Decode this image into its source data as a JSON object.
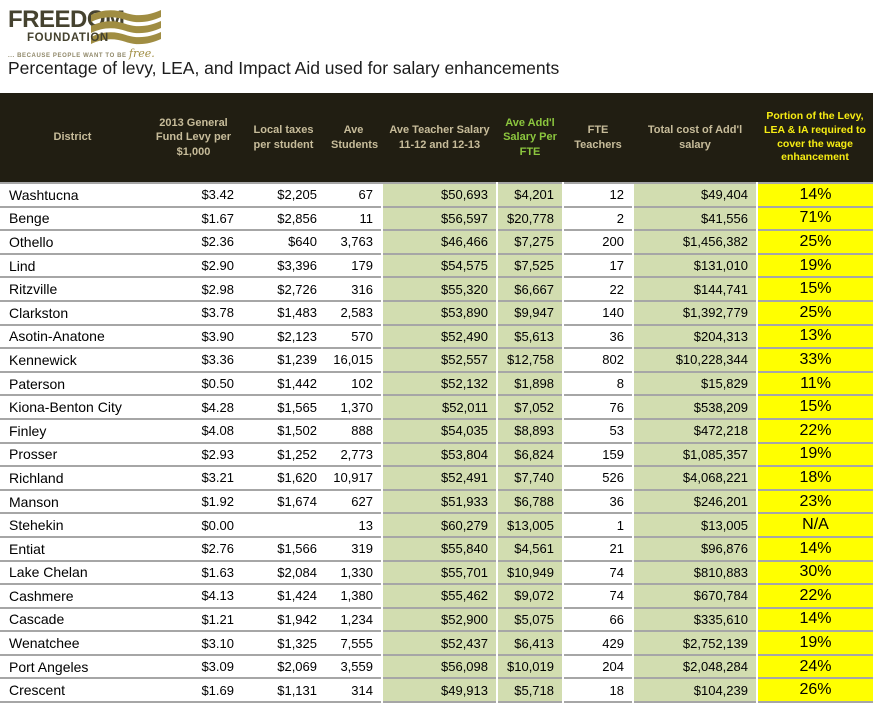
{
  "logo": {
    "name": "FREEDOM",
    "subname": "FOUNDATION",
    "tagline": "... BECAUSE PEOPLE WANT TO BE",
    "tagline_script": "free."
  },
  "title": "Percentage of levy, LEA, and Impact Aid used for salary enhancements",
  "colors": {
    "header_bg": "#211e12",
    "header_text_tan": "#c7bc9a",
    "header_text_green": "#8cc63e",
    "header_text_yellow": "#f7ed13",
    "green_column_bg": "#d2ddb0",
    "yellow_column_bg": "#ffff00",
    "row_border": "#a6a6a6",
    "logo_dark": "#45422f",
    "logo_gold": "#a08d42"
  },
  "table": {
    "columns": [
      {
        "key": "district",
        "label": "District"
      },
      {
        "key": "levy",
        "label": "2013 General Fund Levy per $1,000"
      },
      {
        "key": "local_taxes",
        "label": "Local taxes per student"
      },
      {
        "key": "ave_students",
        "label": "Ave Students"
      },
      {
        "key": "ave_salary",
        "label": "Ave Teacher Salary 11-12 and 12-13"
      },
      {
        "key": "addl_salary",
        "label": "Ave Add'l Salary Per FTE"
      },
      {
        "key": "fte",
        "label": "FTE Teachers"
      },
      {
        "key": "total_cost",
        "label": "Total cost of Add'l salary"
      },
      {
        "key": "portion",
        "label": "Portion of the Levy, LEA & IA required to cover the wage enhancement"
      }
    ],
    "rows": [
      [
        "Washtucna",
        "$3.42",
        "$2,205",
        "67",
        "$50,693",
        "$4,201",
        "12",
        "$49,404",
        "14%"
      ],
      [
        "Benge",
        "$1.67",
        "$2,856",
        "11",
        "$56,597",
        "$20,778",
        "2",
        "$41,556",
        "71%"
      ],
      [
        "Othello",
        "$2.36",
        "$640",
        "3,763",
        "$46,466",
        "$7,275",
        "200",
        "$1,456,382",
        "25%"
      ],
      [
        "Lind",
        "$2.90",
        "$3,396",
        "179",
        "$54,575",
        "$7,525",
        "17",
        "$131,010",
        "19%"
      ],
      [
        "Ritzville",
        "$2.98",
        "$2,726",
        "316",
        "$55,320",
        "$6,667",
        "22",
        "$144,741",
        "15%"
      ],
      [
        "Clarkston",
        "$3.78",
        "$1,483",
        "2,583",
        "$53,890",
        "$9,947",
        "140",
        "$1,392,779",
        "25%"
      ],
      [
        "Asotin-Anatone",
        "$3.90",
        "$2,123",
        "570",
        "$52,490",
        "$5,613",
        "36",
        "$204,313",
        "13%"
      ],
      [
        "Kennewick",
        "$3.36",
        "$1,239",
        "16,015",
        "$52,557",
        "$12,758",
        "802",
        "$10,228,344",
        "33%"
      ],
      [
        "Paterson",
        "$0.50",
        "$1,442",
        "102",
        "$52,132",
        "$1,898",
        "8",
        "$15,829",
        "11%"
      ],
      [
        "Kiona-Benton City",
        "$4.28",
        "$1,565",
        "1,370",
        "$52,011",
        "$7,052",
        "76",
        "$538,209",
        "15%"
      ],
      [
        "Finley",
        "$4.08",
        "$1,502",
        "888",
        "$54,035",
        "$8,893",
        "53",
        "$472,218",
        "22%"
      ],
      [
        "Prosser",
        "$2.93",
        "$1,252",
        "2,773",
        "$53,804",
        "$6,824",
        "159",
        "$1,085,357",
        "19%"
      ],
      [
        "Richland",
        "$3.21",
        "$1,620",
        "10,917",
        "$52,491",
        "$7,740",
        "526",
        "$4,068,221",
        "18%"
      ],
      [
        "Manson",
        "$1.92",
        "$1,674",
        "627",
        "$51,933",
        "$6,788",
        "36",
        "$246,201",
        "23%"
      ],
      [
        "Stehekin",
        "$0.00",
        "",
        "13",
        "$60,279",
        "$13,005",
        "1",
        "$13,005",
        "N/A"
      ],
      [
        "Entiat",
        "$2.76",
        "$1,566",
        "319",
        "$55,840",
        "$4,561",
        "21",
        "$96,876",
        "14%"
      ],
      [
        "Lake Chelan",
        "$1.63",
        "$2,084",
        "1,330",
        "$55,701",
        "$10,949",
        "74",
        "$810,883",
        "30%"
      ],
      [
        "Cashmere",
        "$4.13",
        "$1,424",
        "1,380",
        "$55,462",
        "$9,072",
        "74",
        "$670,784",
        "22%"
      ],
      [
        "Cascade",
        "$1.21",
        "$1,942",
        "1,234",
        "$52,900",
        "$5,075",
        "66",
        "$335,610",
        "14%"
      ],
      [
        "Wenatchee",
        "$3.10",
        "$1,325",
        "7,555",
        "$52,437",
        "$6,413",
        "429",
        "$2,752,139",
        "19%"
      ],
      [
        "Port Angeles",
        "$3.09",
        "$2,069",
        "3,559",
        "$56,098",
        "$10,019",
        "204",
        "$2,048,284",
        "24%"
      ],
      [
        "Crescent",
        "$1.69",
        "$1,131",
        "314",
        "$49,913",
        "$5,718",
        "18",
        "$104,239",
        "26%"
      ]
    ]
  }
}
